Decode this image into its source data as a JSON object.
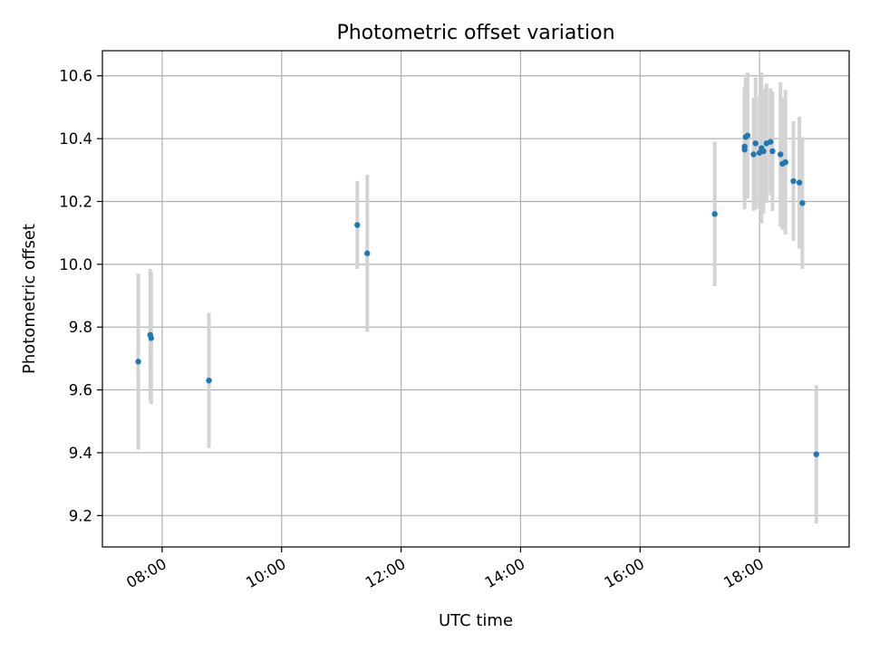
{
  "chart_data": {
    "type": "scatter",
    "title": "Photometric offset variation",
    "xlabel": "UTC time",
    "ylabel": "Photometric offset",
    "xlim": [
      "07:00",
      "19:30"
    ],
    "ylim": [
      9.1,
      10.68
    ],
    "x_ticks": [
      "08:00",
      "10:00",
      "12:00",
      "14:00",
      "16:00",
      "18:00"
    ],
    "y_ticks": [
      "9.2",
      "9.4",
      "9.6",
      "9.8",
      "10.0",
      "10.2",
      "10.4",
      "10.6"
    ],
    "grid": true,
    "colors": {
      "points": "#1f77b4",
      "errorbars": "#d3d3d3",
      "grid": "#b0b0b0"
    },
    "points": [
      {
        "x": "07:36",
        "y": 9.69,
        "err": 0.28
      },
      {
        "x": "07:48",
        "y": 9.775,
        "err": 0.21
      },
      {
        "x": "07:49",
        "y": 9.765,
        "err": 0.21
      },
      {
        "x": "08:47",
        "y": 9.63,
        "err": 0.215
      },
      {
        "x": "11:16",
        "y": 10.125,
        "err": 0.14
      },
      {
        "x": "11:26",
        "y": 10.035,
        "err": 0.25
      },
      {
        "x": "17:15",
        "y": 10.16,
        "err": 0.23
      },
      {
        "x": "17:45",
        "y": 10.365,
        "err": 0.19
      },
      {
        "x": "17:45",
        "y": 10.375,
        "err": 0.19
      },
      {
        "x": "17:46",
        "y": 10.405,
        "err": 0.19
      },
      {
        "x": "17:48",
        "y": 10.41,
        "err": 0.2
      },
      {
        "x": "17:54",
        "y": 10.35,
        "err": 0.18
      },
      {
        "x": "17:56",
        "y": 10.385,
        "err": 0.21
      },
      {
        "x": "18:00",
        "y": 10.355,
        "err": 0.18
      },
      {
        "x": "18:02",
        "y": 10.37,
        "err": 0.24
      },
      {
        "x": "18:04",
        "y": 10.36,
        "err": 0.2
      },
      {
        "x": "18:07",
        "y": 10.385,
        "err": 0.19
      },
      {
        "x": "18:11",
        "y": 10.39,
        "err": 0.17
      },
      {
        "x": "18:13",
        "y": 10.36,
        "err": 0.19
      },
      {
        "x": "18:21",
        "y": 10.35,
        "err": 0.23
      },
      {
        "x": "18:23",
        "y": 10.32,
        "err": 0.21
      },
      {
        "x": "18:26",
        "y": 10.325,
        "err": 0.23
      },
      {
        "x": "18:34",
        "y": 10.265,
        "err": 0.19
      },
      {
        "x": "18:40",
        "y": 10.26,
        "err": 0.21
      },
      {
        "x": "18:43",
        "y": 10.195,
        "err": 0.21
      },
      {
        "x": "18:57",
        "y": 9.395,
        "err": 0.22
      }
    ]
  }
}
